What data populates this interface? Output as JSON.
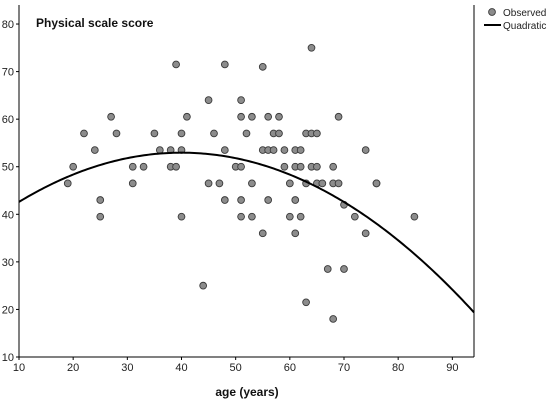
{
  "chart_data": {
    "type": "scatter",
    "title": "Physical scale score",
    "xlabel": "age (years)",
    "ylabel": "",
    "xlim": [
      10,
      94
    ],
    "ylim": [
      10,
      84
    ],
    "xticks": [
      10,
      20,
      30,
      40,
      50,
      60,
      70,
      80,
      90
    ],
    "yticks": [
      10,
      20,
      30,
      40,
      50,
      60,
      70,
      80
    ],
    "grid": false,
    "legend": {
      "placement": "top-right",
      "entries": [
        {
          "label": "Observed",
          "kind": "marker"
        },
        {
          "label": "Quadratic",
          "kind": "line"
        }
      ]
    },
    "colors": {
      "marker_fill": "#8c8c8c",
      "marker_stroke": "#3a3a3a",
      "curve": "#000000",
      "axis": "#000000"
    },
    "series": [
      {
        "name": "Observed",
        "kind": "scatter",
        "points": [
          [
            19,
            46.5
          ],
          [
            20,
            50
          ],
          [
            22,
            57
          ],
          [
            24,
            53.5
          ],
          [
            25,
            43
          ],
          [
            25,
            39.5
          ],
          [
            27,
            60.5
          ],
          [
            28,
            57
          ],
          [
            31,
            50
          ],
          [
            31,
            46.5
          ],
          [
            33,
            50
          ],
          [
            35,
            57
          ],
          [
            36,
            53.5
          ],
          [
            38,
            53.5
          ],
          [
            38,
            50
          ],
          [
            39,
            71.5
          ],
          [
            39,
            50
          ],
          [
            40,
            57
          ],
          [
            40,
            53.5
          ],
          [
            40,
            39.5
          ],
          [
            41,
            60.5
          ],
          [
            44,
            25
          ],
          [
            45,
            64
          ],
          [
            45,
            46.5
          ],
          [
            46,
            57
          ],
          [
            47,
            46.5
          ],
          [
            48,
            71.5
          ],
          [
            48,
            53.5
          ],
          [
            48,
            43
          ],
          [
            50,
            50
          ],
          [
            51,
            64
          ],
          [
            51,
            60.5
          ],
          [
            51,
            50
          ],
          [
            51,
            43
          ],
          [
            51,
            39.5
          ],
          [
            52,
            57
          ],
          [
            53,
            60.5
          ],
          [
            53,
            46.5
          ],
          [
            53,
            39.5
          ],
          [
            55,
            71
          ],
          [
            55,
            53.5
          ],
          [
            55,
            36
          ],
          [
            56,
            60.5
          ],
          [
            56,
            53.5
          ],
          [
            56,
            43
          ],
          [
            57,
            57
          ],
          [
            57,
            53.5
          ],
          [
            58,
            60.5
          ],
          [
            58,
            57
          ],
          [
            59,
            53.5
          ],
          [
            59,
            50
          ],
          [
            60,
            46.5
          ],
          [
            60,
            39.5
          ],
          [
            61,
            53.5
          ],
          [
            61,
            50
          ],
          [
            61,
            43
          ],
          [
            61,
            36
          ],
          [
            62,
            53.5
          ],
          [
            62,
            50
          ],
          [
            62,
            39.5
          ],
          [
            63,
            57
          ],
          [
            63,
            46.5
          ],
          [
            63,
            21.5
          ],
          [
            64,
            75
          ],
          [
            64,
            57
          ],
          [
            64,
            50
          ],
          [
            65,
            57
          ],
          [
            65,
            50
          ],
          [
            65,
            46.5
          ],
          [
            66,
            46.5
          ],
          [
            67,
            28.5
          ],
          [
            68,
            50
          ],
          [
            68,
            46.5
          ],
          [
            68,
            18
          ],
          [
            69,
            60.5
          ],
          [
            69,
            46.5
          ],
          [
            70,
            42
          ],
          [
            70,
            28.5
          ],
          [
            72,
            39.5
          ],
          [
            74,
            53.5
          ],
          [
            74,
            36
          ],
          [
            76,
            46.5
          ],
          [
            76,
            46.5
          ],
          [
            83,
            39.5
          ]
        ]
      },
      {
        "name": "Quadratic",
        "kind": "curve",
        "curve": {
          "type": "quadratic",
          "a": 34.55,
          "b": 0.9205,
          "c": -0.01151
        }
      }
    ]
  }
}
